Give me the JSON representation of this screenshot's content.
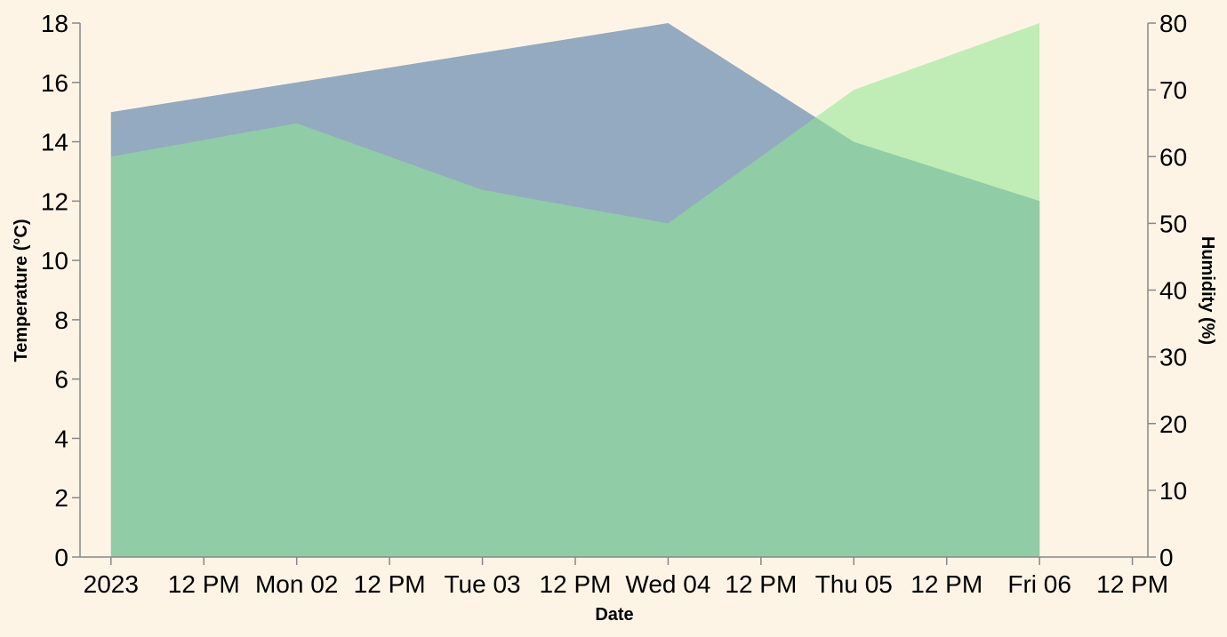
{
  "chart_data": {
    "type": "area",
    "xlabel": "Date",
    "background": "#fdf4e6",
    "grid": false,
    "x": [
      "2023-01-01 00:00",
      "2023-01-02 00:00",
      "2023-01-03 00:00",
      "2023-01-04 00:00",
      "2023-01-05 00:00",
      "2023-01-06 00:00"
    ],
    "x_tick_labels": [
      "2023",
      "12 PM",
      "Mon 02",
      "12 PM",
      "Tue 03",
      "12 PM",
      "Wed 04",
      "12 PM",
      "Thu 05",
      "12 PM",
      "Fri 06",
      "12 PM"
    ],
    "x_range": [
      "2022-12-31 20:00",
      "2023-01-06 14:00"
    ],
    "y_left": {
      "label": "Temperature (°C)",
      "range": [
        0,
        18
      ],
      "ticks": [
        0,
        2,
        4,
        6,
        8,
        10,
        12,
        14,
        16,
        18
      ]
    },
    "y_right": {
      "label": "Humidity (%)",
      "range": [
        0,
        80
      ],
      "ticks": [
        0,
        10,
        20,
        30,
        40,
        50,
        60,
        70,
        80
      ]
    },
    "series": [
      {
        "axis": "left",
        "color": "#4c78a8",
        "opacity": 0.6,
        "values": [
          15,
          16,
          17,
          18,
          14,
          12
        ]
      },
      {
        "axis": "right",
        "color": "#8ee88e",
        "opacity": 0.55,
        "values": [
          60,
          65,
          55,
          50,
          70,
          80
        ]
      }
    ]
  }
}
